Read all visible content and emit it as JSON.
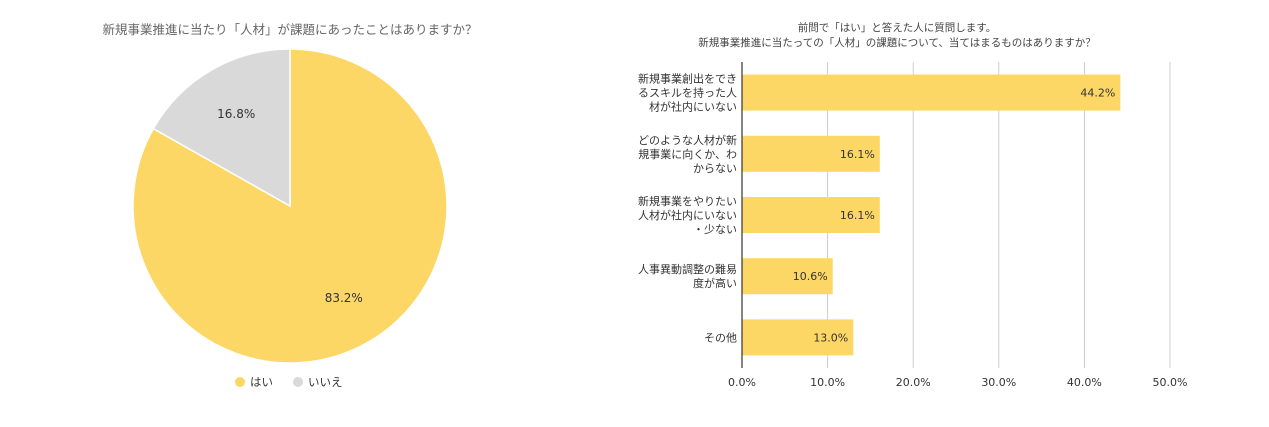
{
  "colors": {
    "yes": "#FDD766",
    "no": "#D9D9D9",
    "grid": "#CCCCCC",
    "text": "#333333",
    "axis": "#333333"
  },
  "chart_data": [
    {
      "type": "pie",
      "title": "新規事業推進に当たり「人材」が課題にあったことはありますか？",
      "slices": [
        {
          "label": "はい",
          "value": 83.2,
          "display": "83.2%"
        },
        {
          "label": "いいえ",
          "value": 16.8,
          "display": "16.8%"
        }
      ],
      "legend": {
        "position": "bottom",
        "items": [
          "はい",
          "いいえ"
        ]
      }
    },
    {
      "type": "bar",
      "orientation": "horizontal",
      "title_lines": [
        "前問で「はい」と答えた人に質問します。",
        "新規事業推進に当たっての「人材」の課題について、当てはまるものはありますか？"
      ],
      "categories": [
        [
          "新規事業創出をでき",
          "るスキルを持った人",
          "材が社内にいない"
        ],
        [
          "どのような人材が新",
          "規事業に向くか、わ",
          "からない"
        ],
        [
          "新規事業をやりたい",
          "人材が社内にいない",
          "・少ない"
        ],
        [
          "人事異動調整の難易",
          "度が高い"
        ],
        [
          "その他"
        ]
      ],
      "values": [
        44.2,
        16.1,
        16.1,
        10.6,
        13.0
      ],
      "value_labels": [
        "44.2%",
        "16.1%",
        "16.1%",
        "10.6%",
        "13.0%"
      ],
      "xlim": [
        0,
        50
      ],
      "x_ticks": [
        "0.0%",
        "10.0%",
        "20.0%",
        "30.0%",
        "40.0%",
        "50.0%"
      ],
      "grid": true,
      "legend": "none"
    }
  ]
}
